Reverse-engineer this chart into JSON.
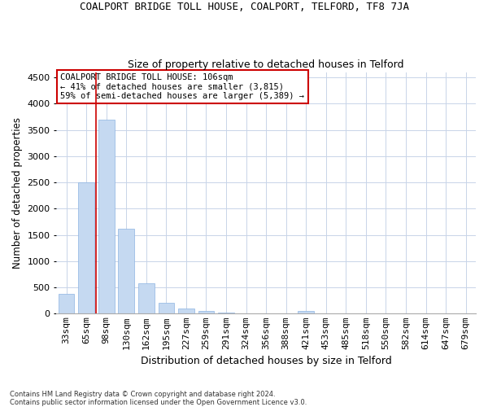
{
  "title": "COALPORT BRIDGE TOLL HOUSE, COALPORT, TELFORD, TF8 7JA",
  "subtitle": "Size of property relative to detached houses in Telford",
  "xlabel": "Distribution of detached houses by size in Telford",
  "ylabel": "Number of detached properties",
  "categories": [
    "33sqm",
    "65sqm",
    "98sqm",
    "130sqm",
    "162sqm",
    "195sqm",
    "227sqm",
    "259sqm",
    "291sqm",
    "324sqm",
    "356sqm",
    "388sqm",
    "421sqm",
    "453sqm",
    "485sqm",
    "518sqm",
    "550sqm",
    "582sqm",
    "614sqm",
    "647sqm",
    "679sqm"
  ],
  "values": [
    375,
    2500,
    3700,
    1625,
    575,
    215,
    95,
    55,
    20,
    0,
    0,
    0,
    60,
    0,
    0,
    0,
    0,
    0,
    0,
    0,
    0
  ],
  "bar_color": "#c5d9f1",
  "bar_edgecolor": "#8db4e2",
  "grid_color": "#c8d4e8",
  "background_color": "#ffffff",
  "red_line_x": 1.5,
  "annotation_text": "COALPORT BRIDGE TOLL HOUSE: 106sqm\n← 41% of detached houses are smaller (3,815)\n59% of semi-detached houses are larger (5,389) →",
  "red_line_color": "#cc0000",
  "annotation_box_color": "#ffffff",
  "annotation_box_edgecolor": "#cc0000",
  "footer_text": "Contains HM Land Registry data © Crown copyright and database right 2024.\nContains public sector information licensed under the Open Government Licence v3.0.",
  "ylim": [
    0,
    4600
  ],
  "yticks": [
    0,
    500,
    1000,
    1500,
    2000,
    2500,
    3000,
    3500,
    4000,
    4500
  ],
  "title_fontsize": 9,
  "subtitle_fontsize": 9,
  "ylabel_fontsize": 8.5,
  "xlabel_fontsize": 9,
  "tick_fontsize": 8,
  "annot_fontsize": 7.5,
  "footer_fontsize": 6
}
